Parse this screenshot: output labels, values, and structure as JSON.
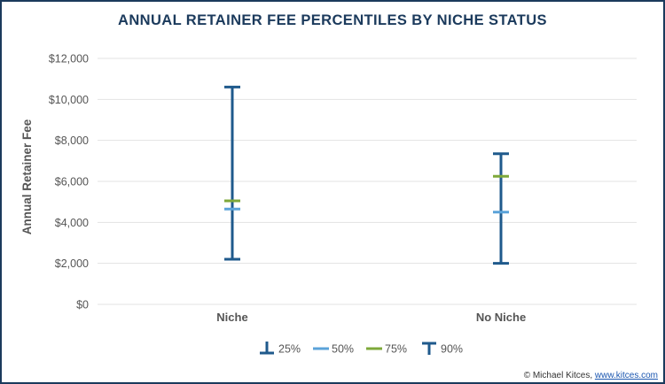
{
  "chart_data": {
    "type": "range",
    "title": "ANNUAL RETAINER FEE PERCENTILES BY NICHE STATUS",
    "ylabel": "Annual Retainer Fee",
    "ylim": [
      0,
      12000
    ],
    "yticks": [
      0,
      2000,
      4000,
      6000,
      8000,
      10000,
      12000
    ],
    "ytick_labels": [
      "$0",
      "$2,000",
      "$4,000",
      "$6,000",
      "$8,000",
      "$10,000",
      "$12,000"
    ],
    "grid": true,
    "legend_position": "bottom",
    "categories": [
      "Niche",
      "No Niche"
    ],
    "series": [
      {
        "name": "25%",
        "values": [
          2200,
          2000
        ]
      },
      {
        "name": "50%",
        "values": [
          4650,
          4500
        ]
      },
      {
        "name": "75%",
        "values": [
          5050,
          6250
        ]
      },
      {
        "name": "90%",
        "values": [
          10600,
          7350
        ]
      }
    ],
    "colors": {
      "25%": "#1f5a8c",
      "50%": "#5ba3d9",
      "75%": "#7ea83a",
      "90%": "#1f5a8c",
      "range_line": "#1f5a8c"
    }
  },
  "credit": {
    "prefix": "© Michael Kitces, ",
    "link": "www.kitces.com"
  }
}
